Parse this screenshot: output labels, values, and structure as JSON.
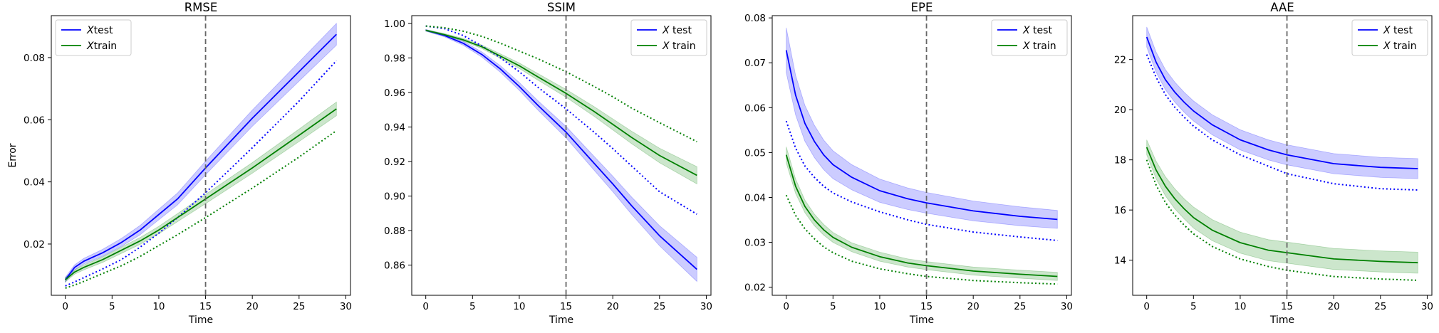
{
  "figure": {
    "xlabel": "Time",
    "ylabel": "Error",
    "colors": {
      "test": "#0000ff",
      "train": "#008000",
      "vline": "#666666",
      "band_test": "#0000ff",
      "band_train": "#008000"
    },
    "vline_x": 15
  },
  "chart_data": [
    {
      "type": "line",
      "title": "RMSE",
      "xlabel": "Time",
      "ylabel": "Error",
      "xlim": [
        -1.5,
        30.5
      ],
      "ylim": [
        0.0035,
        0.0935
      ],
      "xticks": [
        0,
        5,
        10,
        15,
        20,
        25,
        30
      ],
      "yticks": [
        0.02,
        0.04,
        0.06,
        0.08
      ],
      "ytick_labels": [
        "0.02",
        "0.04",
        "0.06",
        "0.08"
      ],
      "legend_loc": "top-left",
      "legend": [
        "Xtest",
        "Xtrain"
      ],
      "x": [
        0,
        1,
        2,
        4,
        6,
        8,
        10,
        12,
        15,
        20,
        25,
        29
      ],
      "series": [
        {
          "key": "test",
          "name": "Xtest",
          "style": "solid",
          "values": [
            0.0085,
            0.0125,
            0.0145,
            0.0172,
            0.0205,
            0.0245,
            0.0295,
            0.0345,
            0.0445,
            0.0605,
            0.0755,
            0.0875
          ],
          "band": [
            0.0008,
            0.0008,
            0.0009,
            0.0011,
            0.0013,
            0.0015,
            0.0017,
            0.0019,
            0.0022,
            0.0026,
            0.0031,
            0.0035
          ]
        },
        {
          "key": "test",
          "style": "dotted",
          "values": [
            0.0065,
            0.0078,
            0.0092,
            0.012,
            0.015,
            0.019,
            0.0235,
            0.0285,
            0.0365,
            0.051,
            0.066,
            0.079
          ]
        },
        {
          "key": "train",
          "name": "Xtrain",
          "style": "solid",
          "values": [
            0.0085,
            0.011,
            0.0125,
            0.015,
            0.018,
            0.021,
            0.0245,
            0.0285,
            0.0345,
            0.0445,
            0.055,
            0.0635
          ],
          "band": [
            0.0007,
            0.0007,
            0.0008,
            0.0009,
            0.001,
            0.0011,
            0.0012,
            0.0013,
            0.0015,
            0.0017,
            0.002,
            0.0022
          ]
        },
        {
          "key": "train",
          "style": "dotted",
          "values": [
            0.0058,
            0.0068,
            0.008,
            0.0105,
            0.013,
            0.016,
            0.0195,
            0.023,
            0.0285,
            0.038,
            0.048,
            0.0565
          ]
        }
      ]
    },
    {
      "type": "line",
      "title": "SSIM",
      "xlabel": "Time",
      "xlim": [
        -1.5,
        30.5
      ],
      "ylim": [
        0.8425,
        1.0045
      ],
      "xticks": [
        0,
        5,
        10,
        15,
        20,
        25,
        30
      ],
      "yticks": [
        0.86,
        0.88,
        0.9,
        0.92,
        0.94,
        0.96,
        0.98,
        1.0
      ],
      "ytick_labels": [
        "0.86",
        "0.88",
        "0.90",
        "0.92",
        "0.94",
        "0.96",
        "0.98",
        "1.00"
      ],
      "legend_loc": "top-right",
      "legend": [
        "X test",
        "X train"
      ],
      "x": [
        0,
        2,
        4,
        6,
        8,
        10,
        12,
        15,
        18,
        20,
        22,
        25,
        29
      ],
      "series": [
        {
          "key": "test",
          "name": "X test",
          "style": "solid",
          "values": [
            0.996,
            0.993,
            0.9885,
            0.982,
            0.9735,
            0.9635,
            0.9525,
            0.937,
            0.919,
            0.907,
            0.8945,
            0.877,
            0.8575
          ],
          "band": [
            0.0005,
            0.0008,
            0.0011,
            0.0015,
            0.0019,
            0.0023,
            0.0027,
            0.0033,
            0.004,
            0.0045,
            0.005,
            0.0058,
            0.007
          ]
        },
        {
          "key": "test",
          "style": "dotted",
          "values": [
            0.9985,
            0.997,
            0.993,
            0.987,
            0.98,
            0.972,
            0.963,
            0.9505,
            0.937,
            0.9275,
            0.9175,
            0.9025,
            0.8895
          ]
        },
        {
          "key": "train",
          "name": "X train",
          "style": "solid",
          "values": [
            0.996,
            0.9935,
            0.9905,
            0.9865,
            0.981,
            0.9755,
            0.969,
            0.9595,
            0.949,
            0.9415,
            0.934,
            0.9235,
            0.912
          ],
          "band": [
            0.0004,
            0.0006,
            0.0008,
            0.001,
            0.0013,
            0.0016,
            0.0019,
            0.0023,
            0.0028,
            0.0032,
            0.0036,
            0.0042,
            0.005
          ]
        },
        {
          "key": "train",
          "style": "dotted",
          "values": [
            0.9985,
            0.9975,
            0.9955,
            0.9925,
            0.9885,
            0.984,
            0.9795,
            0.972,
            0.9635,
            0.9575,
            0.951,
            0.9425,
            0.9315
          ]
        }
      ]
    },
    {
      "type": "line",
      "title": "EPE",
      "xlabel": "Time",
      "xlim": [
        -1.5,
        30.5
      ],
      "ylim": [
        0.0182,
        0.0805
      ],
      "xticks": [
        0,
        5,
        10,
        15,
        20,
        25,
        30
      ],
      "yticks": [
        0.02,
        0.03,
        0.04,
        0.05,
        0.06,
        0.07,
        0.08
      ],
      "ytick_labels": [
        "0.02",
        "0.03",
        "0.04",
        "0.05",
        "0.06",
        "0.07",
        "0.08"
      ],
      "legend_loc": "top-right",
      "legend": [
        "X test",
        "X train"
      ],
      "x": [
        0,
        1,
        2,
        3,
        4,
        5,
        7,
        10,
        13,
        15,
        20,
        25,
        29
      ],
      "series": [
        {
          "key": "test",
          "name": "X test",
          "style": "solid",
          "values": [
            0.0728,
            0.0628,
            0.0565,
            0.0525,
            0.0495,
            0.0473,
            0.0445,
            0.0415,
            0.0397,
            0.0388,
            0.037,
            0.0358,
            0.0351
          ],
          "band": [
            0.005,
            0.0044,
            0.004,
            0.0036,
            0.0033,
            0.0031,
            0.0028,
            0.0026,
            0.0024,
            0.0023,
            0.0022,
            0.0021,
            0.002
          ]
        },
        {
          "key": "test",
          "style": "dotted",
          "values": [
            0.057,
            0.051,
            0.047,
            0.0445,
            0.0425,
            0.041,
            0.039,
            0.0368,
            0.035,
            0.034,
            0.0323,
            0.0312,
            0.0304
          ]
        },
        {
          "key": "train",
          "name": "X train",
          "style": "solid",
          "values": [
            0.0495,
            0.0425,
            0.038,
            0.035,
            0.0328,
            0.0311,
            0.0289,
            0.0268,
            0.0254,
            0.0248,
            0.0236,
            0.0229,
            0.0224
          ],
          "band": [
            0.0018,
            0.0016,
            0.0014,
            0.0013,
            0.0012,
            0.0011,
            0.001,
            0.001,
            0.0009,
            0.0009,
            0.0009,
            0.0009,
            0.0009
          ]
        },
        {
          "key": "train",
          "style": "dotted",
          "values": [
            0.0405,
            0.036,
            0.033,
            0.0308,
            0.029,
            0.0277,
            0.0258,
            0.0241,
            0.023,
            0.0224,
            0.0215,
            0.021,
            0.0207
          ]
        }
      ]
    },
    {
      "type": "line",
      "title": "AAE",
      "xlabel": "Time",
      "xlim": [
        -1.5,
        30.5
      ],
      "ylim": [
        12.6,
        23.75
      ],
      "xticks": [
        0,
        5,
        10,
        15,
        20,
        25,
        30
      ],
      "yticks": [
        14,
        16,
        18,
        20,
        22
      ],
      "ytick_labels": [
        "14",
        "16",
        "18",
        "20",
        "22"
      ],
      "legend_loc": "top-right",
      "legend": [
        "X test",
        "X train"
      ],
      "x": [
        0,
        1,
        2,
        3,
        4,
        5,
        7,
        10,
        13,
        15,
        20,
        25,
        29
      ],
      "series": [
        {
          "key": "test",
          "name": "X test",
          "style": "solid",
          "values": [
            22.9,
            21.9,
            21.2,
            20.7,
            20.3,
            19.95,
            19.4,
            18.8,
            18.4,
            18.2,
            17.85,
            17.7,
            17.65
          ],
          "band": [
            0.4,
            0.4,
            0.4,
            0.4,
            0.4,
            0.4,
            0.4,
            0.4,
            0.4,
            0.4,
            0.4,
            0.4,
            0.4
          ]
        },
        {
          "key": "test",
          "style": "dotted",
          "values": [
            22.2,
            21.3,
            20.6,
            20.1,
            19.7,
            19.35,
            18.8,
            18.2,
            17.75,
            17.45,
            17.05,
            16.85,
            16.8
          ]
        },
        {
          "key": "train",
          "name": "X train",
          "style": "solid",
          "values": [
            18.5,
            17.6,
            16.95,
            16.45,
            16.05,
            15.7,
            15.2,
            14.7,
            14.4,
            14.3,
            14.05,
            13.95,
            13.9
          ],
          "band": [
            0.3,
            0.35,
            0.38,
            0.4,
            0.4,
            0.42,
            0.42,
            0.42,
            0.42,
            0.42,
            0.42,
            0.42,
            0.42
          ]
        },
        {
          "key": "train",
          "style": "dotted",
          "values": [
            18.0,
            17.0,
            16.3,
            15.8,
            15.4,
            15.05,
            14.55,
            14.05,
            13.75,
            13.6,
            13.35,
            13.25,
            13.2
          ]
        }
      ]
    }
  ]
}
